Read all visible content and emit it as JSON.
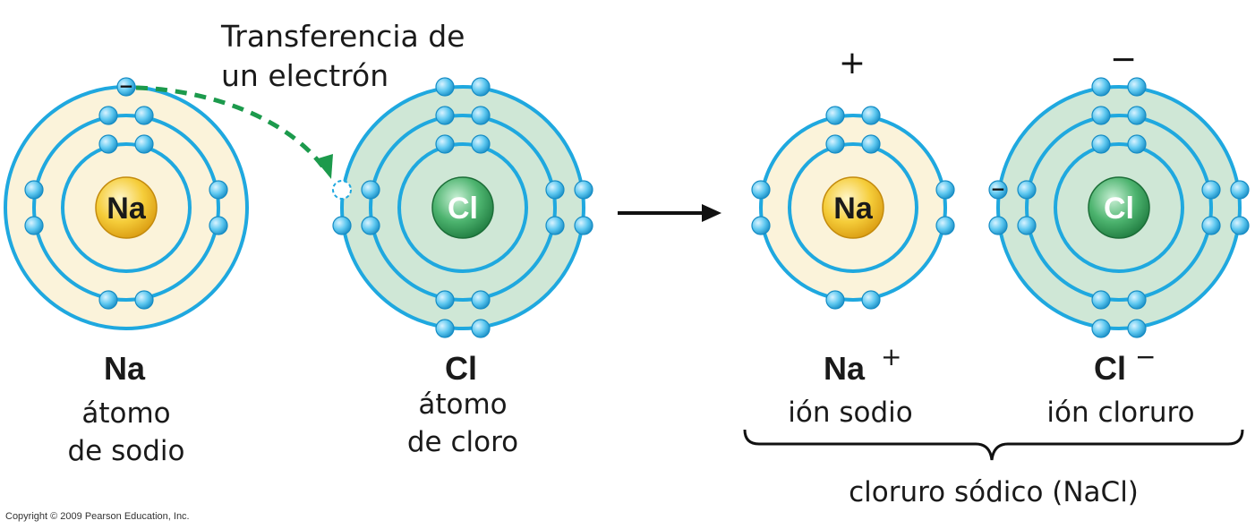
{
  "transfer_label": [
    "Transferencia de",
    "un electrón"
  ],
  "atoms": [
    {
      "id": "na-atom",
      "nucleus": "Na",
      "type": "na",
      "shells": 3,
      "outer_electrons": 1,
      "missing_slot": false,
      "extra_electron": false,
      "symbol": "Na",
      "charge": "",
      "caption": [
        "átomo",
        "de sodio"
      ]
    },
    {
      "id": "cl-atom",
      "nucleus": "Cl",
      "type": "cl",
      "shells": 3,
      "outer_electrons": 7,
      "missing_slot": true,
      "extra_electron": false,
      "symbol": "Cl",
      "charge": "",
      "caption": [
        "átomo",
        "de cloro"
      ]
    },
    {
      "id": "na-ion",
      "nucleus": "Na",
      "type": "na",
      "shells": 2,
      "outer_electrons": 8,
      "missing_slot": false,
      "extra_electron": false,
      "symbol": "Na",
      "charge": "+",
      "caption": [
        "ión sodio"
      ],
      "sign": "+"
    },
    {
      "id": "cl-ion",
      "nucleus": "Cl",
      "type": "cl",
      "shells": 3,
      "outer_electrons": 8,
      "missing_slot": false,
      "extra_electron": true,
      "symbol": "Cl",
      "charge": "−",
      "caption": [
        "ión cloruro"
      ],
      "sign": "−"
    }
  ],
  "compound_label": "cloruro sódico (NaCl)",
  "copyright": "Copyright © 2009 Pearson Education, Inc.",
  "colors": {
    "orbit": "#1fa8df",
    "na_fill": "#fbf3da",
    "cl_fill": "#cfe7d6",
    "electron": "#5ec8f0",
    "na_nucleus": "#f2c430",
    "cl_nucleus": "#3fa863",
    "transfer_arrow": "#1c9a4c"
  }
}
